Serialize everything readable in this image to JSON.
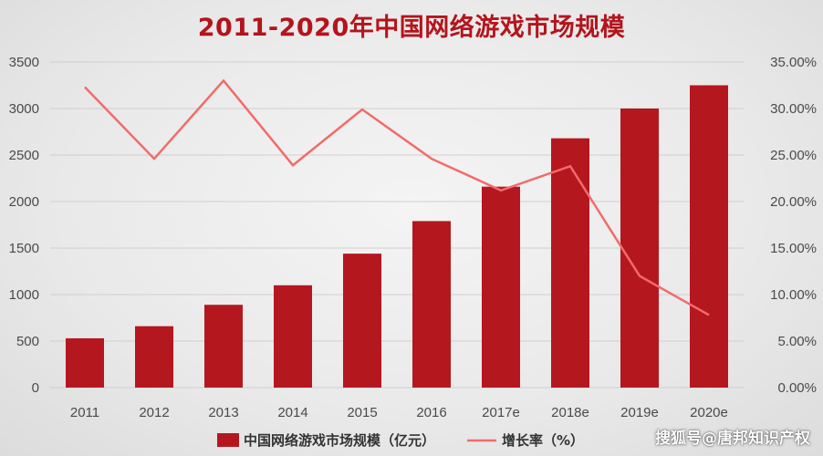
{
  "chart_data": {
    "type": "bar",
    "title": "2011-2020年中国网络游戏市场规模",
    "categories": [
      "2011",
      "2012",
      "2013",
      "2014",
      "2015",
      "2016",
      "2017e",
      "2018e",
      "2019e",
      "2020e"
    ],
    "series": [
      {
        "name": "中国网络游戏市场规模（亿元）",
        "type": "bar",
        "axis": "left",
        "color": "#b5171f",
        "values": [
          530,
          660,
          890,
          1100,
          1440,
          1790,
          2160,
          2680,
          3000,
          3250
        ]
      },
      {
        "name": "增长率（%）",
        "type": "line",
        "axis": "right",
        "color": "#f26b6b",
        "values": [
          32.3,
          24.6,
          33.0,
          23.9,
          29.9,
          24.6,
          21.2,
          23.8,
          12.0,
          7.8
        ]
      }
    ],
    "y_left": {
      "min": 0,
      "max": 3500,
      "ticks": [
        "0",
        "500",
        "1000",
        "1500",
        "2000",
        "2500",
        "3000",
        "3500"
      ]
    },
    "y_right": {
      "min": 0,
      "max": 35,
      "ticks": [
        "0.00%",
        "5.00%",
        "10.00%",
        "15.00%",
        "20.00%",
        "25.00%",
        "30.00%",
        "35.00%"
      ]
    },
    "grid": true,
    "legend_position": "bottom"
  },
  "legend": {
    "bar_label": "中国网络游戏市场规模（亿元）",
    "line_label": "增长率（%）"
  },
  "watermark": "搜狐号@唐邦知识产权"
}
